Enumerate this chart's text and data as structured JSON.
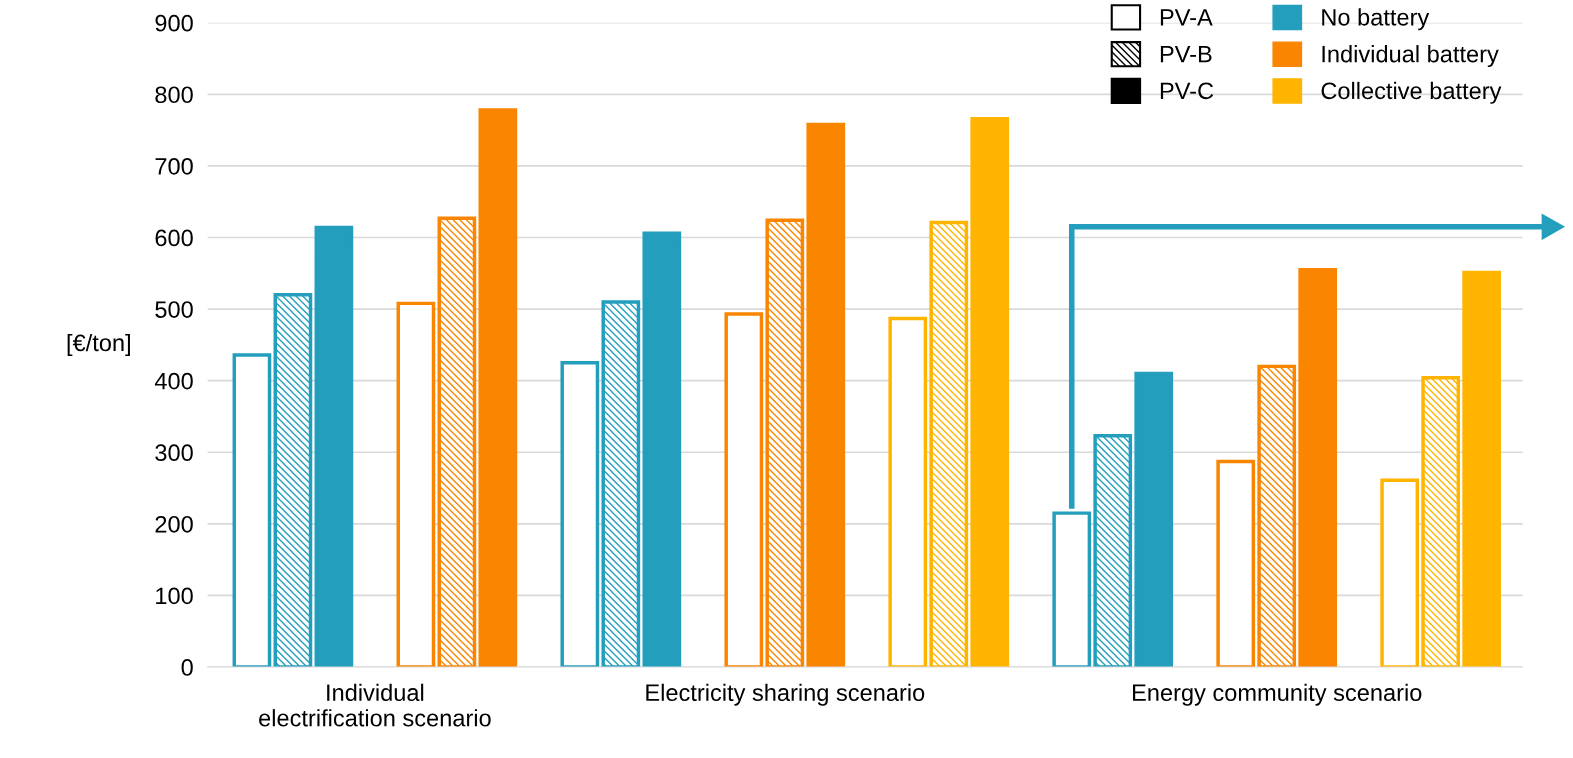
{
  "chart_data": {
    "type": "bar",
    "ylabel": "[€/ton]",
    "categories": [
      "Individual\nelectrification scenario",
      "Electricity sharing scenario",
      "Energy community scenario"
    ],
    "annotations": [
      "PV-A",
      "PV-B",
      "PV-C"
    ],
    "series": [
      {
        "color": "#239fbd",
        "values": [
          436,
          425,
          215
        ]
      },
      {
        "color": "#239fbd",
        "values": [
          520,
          510,
          323
        ]
      },
      {
        "name": "No battery",
        "color": "#239fbd",
        "values": [
          614,
          606,
          410
        ]
      },
      {
        "color": "#fa8500",
        "values": [
          508,
          493,
          287
        ]
      },
      {
        "color": "#fa8500",
        "values": [
          627,
          624,
          420
        ]
      },
      {
        "name": "Individual battery",
        "color": "#fa8500",
        "values": [
          778,
          758,
          555
        ]
      },
      {
        "color": "#ffb400",
        "values": [
          null,
          487,
          261
        ]
      },
      {
        "color": "#ffb400",
        "values": [
          null,
          621,
          404
        ]
      },
      {
        "name": "Collective battery",
        "color": "#ffb400",
        "values": [
          null,
          766,
          551
        ]
      }
    ],
    "ylim": [
      0,
      900
    ],
    "yticks": [
      0,
      100,
      200,
      300,
      400,
      500,
      600,
      700,
      800,
      900
    ],
    "grid": "y",
    "legend": "top right"
  }
}
